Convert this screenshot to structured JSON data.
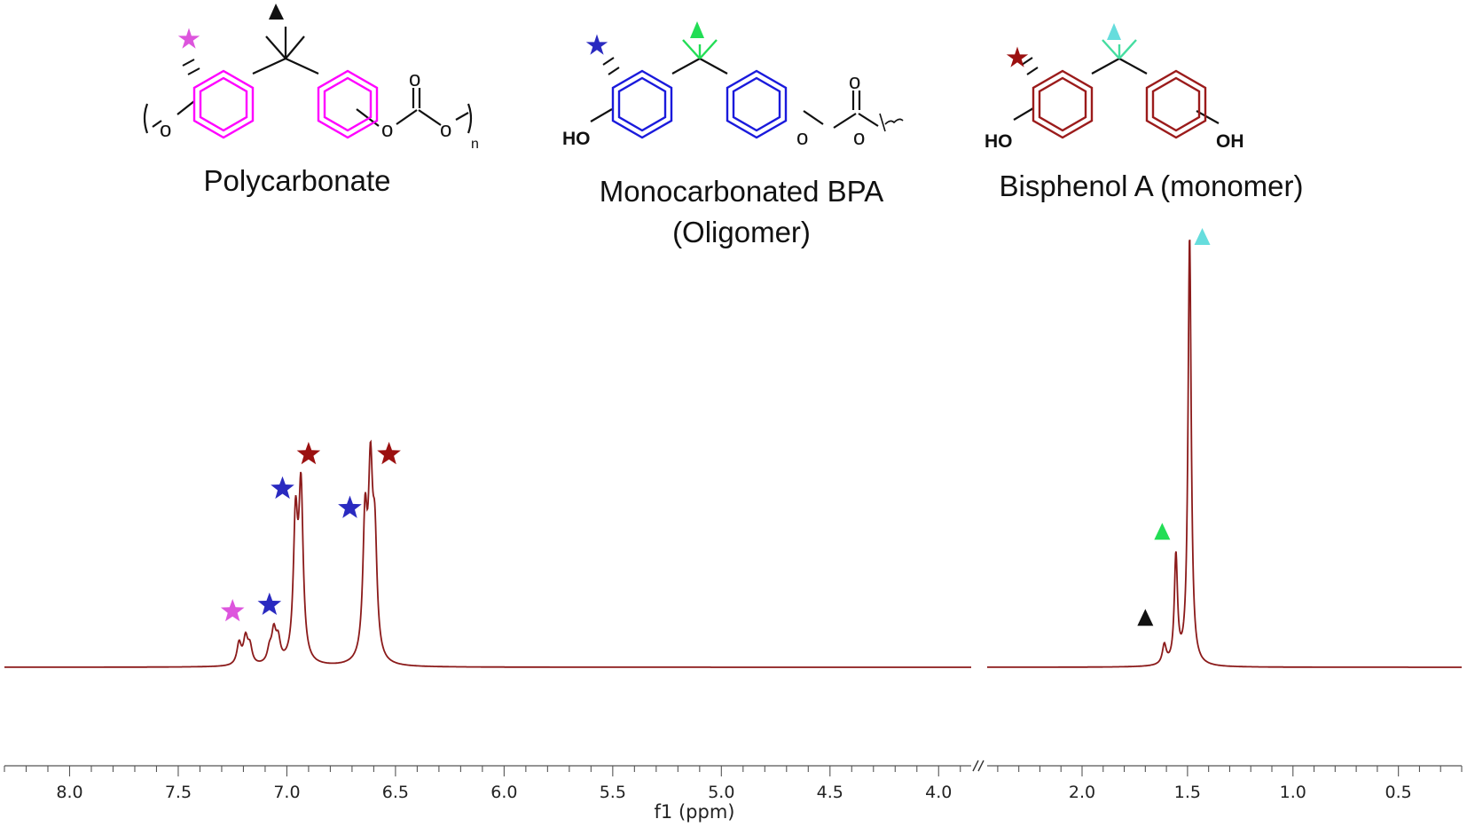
{
  "structures": [
    {
      "name": "Polycarbonate",
      "color": "#ff00ff",
      "star_color": "#dd55dd",
      "triangle_color": "#111111",
      "labels": {
        "o_left": "o",
        "o_mid": "o",
        "o_right": "o",
        "o_top": "o",
        "n": "n"
      }
    },
    {
      "name": "Monocarbonated  BPA",
      "name2": "(Oligomer)",
      "color": "#1a1adc",
      "star_color": "#2a2ac0",
      "triangle_color": "#22dd55",
      "labels": {
        "ho": "HO",
        "o_mid": "o",
        "o_right": "o",
        "o_top": "o"
      }
    },
    {
      "name": "Bisphenol A (monomer)",
      "color": "#9b1b1b",
      "star_color": "#9b1010",
      "triangle_color": "#66dddd",
      "labels": {
        "ho": "HO",
        "oh": "OH"
      }
    }
  ],
  "chart_data": {
    "type": "line",
    "xlabel": "f1 (ppm)",
    "x_reversed": true,
    "segments": [
      {
        "xlim": [
          8.3,
          3.85
        ],
        "ticks": [
          "8.0",
          "7.5",
          "7.0",
          "6.5",
          "6.0",
          "5.5",
          "5.0",
          "4.5",
          "4.0"
        ]
      },
      {
        "xlim": [
          2.45,
          0.2
        ],
        "ticks": [
          "2.0",
          "1.5",
          "1.0",
          "0.5"
        ]
      }
    ],
    "axis_break": true,
    "line_color": "#8b1a1a",
    "peaks": [
      {
        "shift": 7.22,
        "height": 0.05,
        "width": 0.012
      },
      {
        "shift": 7.19,
        "height": 0.06,
        "width": 0.012
      },
      {
        "shift": 7.17,
        "height": 0.04,
        "width": 0.012
      },
      {
        "shift": 7.08,
        "height": 0.03,
        "width": 0.012
      },
      {
        "shift": 7.06,
        "height": 0.07,
        "width": 0.012
      },
      {
        "shift": 7.04,
        "height": 0.05,
        "width": 0.012
      },
      {
        "shift": 6.96,
        "height": 0.32,
        "width": 0.012
      },
      {
        "shift": 6.935,
        "height": 0.39,
        "width": 0.012
      },
      {
        "shift": 6.64,
        "height": 0.31,
        "width": 0.012
      },
      {
        "shift": 6.615,
        "height": 0.4,
        "width": 0.012
      },
      {
        "shift": 6.595,
        "height": 0.25,
        "width": 0.012
      },
      {
        "shift": 1.61,
        "height": 0.045,
        "width": 0.011
      },
      {
        "shift": 1.555,
        "height": 0.25,
        "width": 0.009
      },
      {
        "shift": 1.49,
        "height": 1.0,
        "width": 0.009
      }
    ],
    "markers": [
      {
        "shape": "star",
        "shift": 7.25,
        "level": 0.13,
        "color": "#dd55dd"
      },
      {
        "shape": "star",
        "shift": 7.08,
        "level": 0.145,
        "color": "#2a2ac0"
      },
      {
        "shape": "star",
        "shift": 7.02,
        "level": 0.415,
        "color": "#2a2ac0"
      },
      {
        "shape": "star",
        "shift": 6.71,
        "level": 0.37,
        "color": "#2a2ac0"
      },
      {
        "shape": "star",
        "shift": 6.9,
        "level": 0.495,
        "color": "#9b1010"
      },
      {
        "shape": "star",
        "shift": 6.53,
        "level": 0.495,
        "color": "#9b1010"
      },
      {
        "shape": "triangle",
        "shift": 1.7,
        "level": 0.115,
        "color": "#111111"
      },
      {
        "shape": "triangle",
        "shift": 1.62,
        "level": 0.315,
        "color": "#22dd55"
      },
      {
        "shape": "triangle",
        "shift": 1.43,
        "level": 1.0,
        "color": "#66dddd"
      }
    ]
  }
}
